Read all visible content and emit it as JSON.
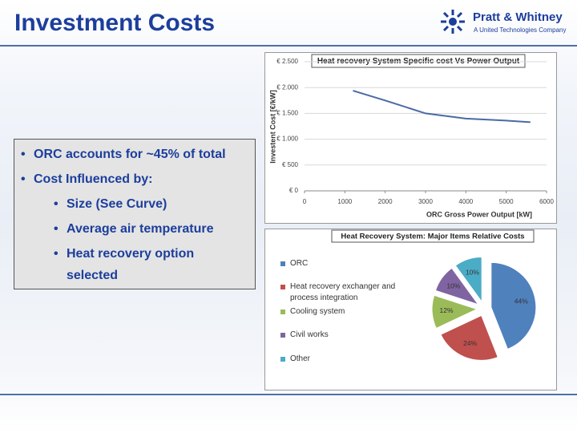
{
  "header": {
    "title": "Investment Costs",
    "logo_name": "Pratt & Whitney",
    "logo_tagline": "A United Technologies Company"
  },
  "bullets": [
    {
      "text": "ORC accounts for ~45% of total",
      "level": 1
    },
    {
      "text": "Cost Influenced by:",
      "level": 1
    },
    {
      "text": "Size (See Curve)",
      "level": 2
    },
    {
      "text": "Average air temperature",
      "level": 2
    },
    {
      "text": "Heat recovery option selected",
      "level": 2
    }
  ],
  "chart_data": [
    {
      "type": "line",
      "title": "Heat recovery System Specific cost Vs Power Output",
      "x_label": "ORC Gross Power Output [kW]",
      "y_label": "Investent Cost [€/kW]",
      "x": [
        1200,
        2000,
        3000,
        4000,
        5000,
        5600
      ],
      "values": [
        1940,
        1750,
        1500,
        1400,
        1360,
        1330
      ],
      "color": "#4a6aa5",
      "xlim": [
        0,
        6000
      ],
      "xticks": [
        0,
        1000,
        2000,
        3000,
        4000,
        5000,
        6000
      ],
      "ylim": [
        0,
        2500
      ],
      "yticks": [
        {
          "value": 0,
          "label": "€ 0"
        },
        {
          "value": 500,
          "label": "€ 500"
        },
        {
          "value": 1000,
          "label": "€ 1.000"
        },
        {
          "value": 1500,
          "label": "€ 1.500"
        },
        {
          "value": 2000,
          "label": "€ 2.000"
        },
        {
          "value": 2500,
          "label": "€ 2.500"
        }
      ],
      "grid": true
    },
    {
      "type": "pie",
      "title": "Heat Recovery System: Major Items Relative Costs",
      "categories": [
        "ORC",
        "Heat recovery exchanger and process integration",
        "Cooling system",
        "Civil works",
        "Other"
      ],
      "values": [
        44,
        24,
        12,
        10,
        10
      ],
      "value_labels": [
        "44%",
        "24%",
        "12%",
        "10%",
        "10%"
      ],
      "colors": [
        "#4f81bd",
        "#c0504d",
        "#9bbb59",
        "#8064a2",
        "#4bacc6"
      ]
    }
  ]
}
